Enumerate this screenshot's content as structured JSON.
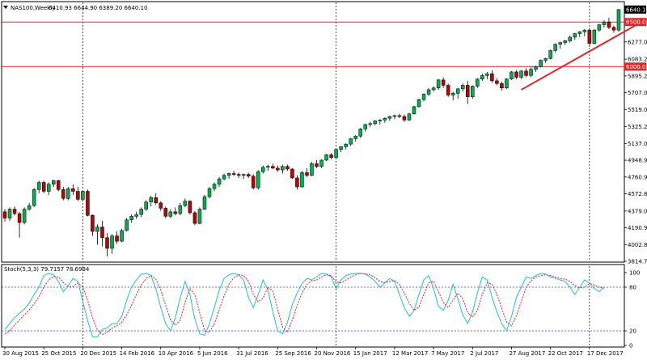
{
  "header": {
    "symbol": "NAS100,Weekly",
    "ohlc": "6410.93 6644.90 6389.20 6640.10",
    "indicator_label": "Stoch(5,3,3) 79.7157 78.6984"
  },
  "colors": {
    "bull": "#00b050",
    "bear": "#c00000",
    "hline": "#e0262a",
    "trendline": "#e0262a",
    "stoch_main": "#26bcd1",
    "stoch_signal": "#e02020",
    "level_line": "#3c3cff",
    "grid_text": "#000000"
  },
  "chart_data": [
    {
      "type": "candlestick",
      "title": "",
      "ylim": [
        3814.7,
        6720
      ],
      "y_ticks": [
        "6640.10",
        "6500.00",
        "6277.05",
        "6083.25",
        "5895.20",
        "5707.00",
        "5519.00",
        "5325.25",
        "5137.05",
        "4948.90",
        "4760.90",
        "4572.80",
        "4379.00",
        "4190.90",
        "4002.80",
        "3814.70"
      ],
      "price_labels": [
        {
          "value": 6640.1,
          "text": "6640.10",
          "style": "dark"
        },
        {
          "value": 6500.0,
          "text": "6500.00",
          "style": "red"
        },
        {
          "value": 6000.0,
          "text": "6000.00",
          "style": "red"
        }
      ],
      "horizontal_lines": [
        6500,
        6000
      ],
      "trendline": {
        "from": [
          106,
          5740
        ],
        "to": [
          132,
          6640
        ]
      },
      "x_labels": [
        {
          "i": 0,
          "text": "30 Aug 2015"
        },
        {
          "i": 8,
          "text": "25 Oct 2015"
        },
        {
          "i": 16,
          "text": "20 Dec 2015"
        },
        {
          "i": 24,
          "text": "14 Feb 2016"
        },
        {
          "i": 32,
          "text": "10 Apr 2016"
        },
        {
          "i": 40,
          "text": "5 Jun 2016"
        },
        {
          "i": 48,
          "text": "31 Jul 2016"
        },
        {
          "i": 56,
          "text": "25 Sep 2016"
        },
        {
          "i": 64,
          "text": "20 Nov 2016"
        },
        {
          "i": 72,
          "text": "15 Jan 2017"
        },
        {
          "i": 80,
          "text": "12 Mar 2017"
        },
        {
          "i": 88,
          "text": "7 May 2017"
        },
        {
          "i": 96,
          "text": "2 Jul 2017"
        },
        {
          "i": 104,
          "text": "27 Aug 2017"
        },
        {
          "i": 112,
          "text": "22 Oct 2017"
        },
        {
          "i": 120,
          "text": "17 Dec 2017"
        }
      ],
      "vertical_markers": [
        16,
        68,
        120
      ],
      "candles": [
        [
          4370,
          4400,
          4260,
          4300
        ],
        [
          4300,
          4420,
          4270,
          4400
        ],
        [
          4400,
          4430,
          4330,
          4350
        ],
        [
          4350,
          4370,
          4080,
          4250
        ],
        [
          4250,
          4420,
          4230,
          4400
        ],
        [
          4400,
          4470,
          4380,
          4440
        ],
        [
          4440,
          4640,
          4420,
          4620
        ],
        [
          4620,
          4720,
          4580,
          4700
        ],
        [
          4700,
          4720,
          4580,
          4600
        ],
        [
          4600,
          4700,
          4560,
          4680
        ],
        [
          4680,
          4730,
          4650,
          4720
        ],
        [
          4720,
          4730,
          4600,
          4620
        ],
        [
          4620,
          4650,
          4500,
          4520
        ],
        [
          4520,
          4650,
          4500,
          4630
        ],
        [
          4630,
          4680,
          4560,
          4600
        ],
        [
          4600,
          4650,
          4490,
          4510
        ],
        [
          4510,
          4610,
          4490,
          4600
        ],
        [
          4600,
          4620,
          4320,
          4330
        ],
        [
          4330,
          4340,
          4100,
          4150
        ],
        [
          4150,
          4230,
          4000,
          4200
        ],
        [
          4200,
          4270,
          3980,
          4080
        ],
        [
          4080,
          4130,
          3870,
          3960
        ],
        [
          3960,
          4120,
          3900,
          4100
        ],
        [
          4100,
          4150,
          4010,
          4040
        ],
        [
          4040,
          4180,
          4030,
          4160
        ],
        [
          4160,
          4300,
          4150,
          4280
        ],
        [
          4280,
          4340,
          4250,
          4320
        ],
        [
          4320,
          4370,
          4290,
          4340
        ],
        [
          4340,
          4420,
          4310,
          4400
        ],
        [
          4400,
          4500,
          4380,
          4480
        ],
        [
          4480,
          4550,
          4430,
          4530
        ],
        [
          4530,
          4580,
          4450,
          4470
        ],
        [
          4470,
          4490,
          4380,
          4410
        ],
        [
          4410,
          4430,
          4300,
          4320
        ],
        [
          4320,
          4400,
          4300,
          4370
        ],
        [
          4370,
          4420,
          4330,
          4350
        ],
        [
          4350,
          4470,
          4330,
          4440
        ],
        [
          4440,
          4520,
          4420,
          4490
        ],
        [
          4490,
          4500,
          4340,
          4360
        ],
        [
          4360,
          4380,
          4220,
          4240
        ],
        [
          4240,
          4420,
          4230,
          4400
        ],
        [
          4400,
          4560,
          4390,
          4540
        ],
        [
          4540,
          4650,
          4520,
          4630
        ],
        [
          4630,
          4700,
          4600,
          4680
        ],
        [
          4680,
          4760,
          4650,
          4740
        ],
        [
          4740,
          4800,
          4720,
          4780
        ],
        [
          4780,
          4810,
          4740,
          4800
        ],
        [
          4800,
          4830,
          4770,
          4790
        ],
        [
          4790,
          4810,
          4750,
          4780
        ],
        [
          4780,
          4800,
          4740,
          4790
        ],
        [
          4790,
          4810,
          4750,
          4770
        ],
        [
          4770,
          4790,
          4620,
          4640
        ],
        [
          4640,
          4840,
          4620,
          4820
        ],
        [
          4820,
          4890,
          4800,
          4870
        ],
        [
          4870,
          4900,
          4830,
          4880
        ],
        [
          4880,
          4910,
          4850,
          4860
        ],
        [
          4860,
          4890,
          4820,
          4840
        ],
        [
          4840,
          4900,
          4800,
          4880
        ],
        [
          4880,
          4900,
          4830,
          4850
        ],
        [
          4850,
          4860,
          4740,
          4750
        ],
        [
          4750,
          4780,
          4620,
          4650
        ],
        [
          4650,
          4830,
          4640,
          4810
        ],
        [
          4810,
          4860,
          4760,
          4780
        ],
        [
          4780,
          4930,
          4770,
          4910
        ],
        [
          4910,
          4950,
          4860,
          4880
        ],
        [
          4880,
          4960,
          4860,
          4950
        ],
        [
          4950,
          5020,
          4940,
          5010
        ],
        [
          5010,
          5030,
          4960,
          4980
        ],
        [
          4980,
          5080,
          4970,
          5070
        ],
        [
          5070,
          5110,
          5040,
          5100
        ],
        [
          5100,
          5140,
          5070,
          5130
        ],
        [
          5130,
          5200,
          5110,
          5190
        ],
        [
          5190,
          5230,
          5160,
          5220
        ],
        [
          5220,
          5310,
          5200,
          5300
        ],
        [
          5300,
          5360,
          5270,
          5350
        ],
        [
          5350,
          5380,
          5320,
          5360
        ],
        [
          5360,
          5400,
          5340,
          5390
        ],
        [
          5390,
          5410,
          5350,
          5400
        ],
        [
          5400,
          5430,
          5370,
          5420
        ],
        [
          5420,
          5450,
          5390,
          5440
        ],
        [
          5440,
          5460,
          5410,
          5450
        ],
        [
          5450,
          5470,
          5420,
          5440
        ],
        [
          5440,
          5460,
          5380,
          5400
        ],
        [
          5400,
          5480,
          5390,
          5470
        ],
        [
          5470,
          5560,
          5460,
          5550
        ],
        [
          5550,
          5640,
          5540,
          5630
        ],
        [
          5630,
          5700,
          5610,
          5690
        ],
        [
          5690,
          5760,
          5670,
          5740
        ],
        [
          5740,
          5780,
          5720,
          5760
        ],
        [
          5760,
          5860,
          5740,
          5850
        ],
        [
          5850,
          5880,
          5760,
          5790
        ],
        [
          5790,
          5810,
          5660,
          5680
        ],
        [
          5680,
          5720,
          5620,
          5700
        ],
        [
          5700,
          5760,
          5640,
          5750
        ],
        [
          5750,
          5810,
          5720,
          5790
        ],
        [
          5790,
          5840,
          5580,
          5660
        ],
        [
          5660,
          5790,
          5640,
          5780
        ],
        [
          5780,
          5870,
          5760,
          5860
        ],
        [
          5860,
          5920,
          5840,
          5900
        ],
        [
          5900,
          5940,
          5860,
          5920
        ],
        [
          5920,
          5960,
          5820,
          5840
        ],
        [
          5840,
          5870,
          5790,
          5810
        ],
        [
          5810,
          5830,
          5730,
          5760
        ],
        [
          5760,
          5870,
          5750,
          5860
        ],
        [
          5860,
          5950,
          5850,
          5940
        ],
        [
          5940,
          5960,
          5860,
          5880
        ],
        [
          5880,
          5960,
          5860,
          5950
        ],
        [
          5950,
          5980,
          5880,
          5900
        ],
        [
          5900,
          5990,
          5880,
          5970
        ],
        [
          5970,
          6010,
          5940,
          6000
        ],
        [
          6000,
          6080,
          5990,
          6070
        ],
        [
          6070,
          6100,
          6040,
          6090
        ],
        [
          6090,
          6190,
          6080,
          6180
        ],
        [
          6180,
          6260,
          6160,
          6250
        ],
        [
          6250,
          6280,
          6200,
          6270
        ],
        [
          6270,
          6300,
          6240,
          6290
        ],
        [
          6290,
          6350,
          6270,
          6330
        ],
        [
          6330,
          6380,
          6300,
          6370
        ],
        [
          6370,
          6400,
          6330,
          6390
        ],
        [
          6390,
          6420,
          6340,
          6410
        ],
        [
          6410,
          6430,
          6220,
          6260
        ],
        [
          6260,
          6420,
          6250,
          6410
        ],
        [
          6410,
          6480,
          6390,
          6470
        ],
        [
          6470,
          6520,
          6440,
          6500
        ],
        [
          6500,
          6550,
          6420,
          6440
        ],
        [
          6440,
          6460,
          6380,
          6410
        ],
        [
          6410,
          6645,
          6390,
          6640
        ]
      ]
    },
    {
      "type": "line",
      "title": "",
      "ylim": [
        0,
        100
      ],
      "y_ticks": [
        100,
        80,
        20,
        0
      ],
      "levels": [
        80,
        20
      ],
      "series": [
        {
          "key": "main",
          "values": [
            22,
            30,
            38,
            44,
            50,
            58,
            70,
            80,
            96,
            99,
            97,
            88,
            74,
            82,
            92,
            88,
            60,
            34,
            12,
            12,
            22,
            24,
            30,
            30,
            40,
            62,
            80,
            90,
            98,
            99,
            96,
            78,
            52,
            30,
            20,
            38,
            66,
            88,
            70,
            36,
            16,
            14,
            30,
            52,
            76,
            92,
            97,
            99,
            97,
            90,
            66,
            52,
            70,
            90,
            76,
            46,
            20,
            16,
            32,
            56,
            72,
            85,
            92,
            90,
            94,
            99,
            98,
            94,
            78,
            90,
            96,
            98,
            99,
            99,
            98,
            94,
            88,
            80,
            86,
            92,
            88,
            70,
            52,
            40,
            48,
            70,
            90,
            96,
            78,
            54,
            48,
            62,
            84,
            64,
            42,
            30,
            46,
            72,
            94,
            90,
            66,
            46,
            30,
            20,
            40,
            66,
            80,
            94,
            92,
            96,
            99,
            98,
            94,
            92,
            90,
            88,
            80,
            70,
            80,
            90,
            86,
            78,
            74,
            79.72
          ]
        },
        {
          "key": "signal",
          "values": [
            16,
            20,
            28,
            35,
            42,
            49,
            57,
            67,
            80,
            90,
            95,
            94,
            86,
            81,
            81,
            86,
            80,
            62,
            38,
            21,
            15,
            18,
            24,
            27,
            32,
            42,
            55,
            70,
            83,
            92,
            96,
            91,
            76,
            55,
            35,
            28,
            35,
            60,
            78,
            70,
            45,
            20,
            18,
            30,
            49,
            68,
            84,
            93,
            97,
            96,
            88,
            70,
            60,
            65,
            80,
            75,
            50,
            25,
            18,
            35,
            55,
            72,
            84,
            89,
            90,
            94,
            97,
            96,
            87,
            86,
            90,
            94,
            97,
            99,
            98,
            97,
            93,
            88,
            86,
            88,
            89,
            84,
            72,
            58,
            48,
            53,
            70,
            86,
            88,
            74,
            59,
            52,
            62,
            72,
            64,
            45,
            39,
            48,
            70,
            86,
            84,
            70,
            51,
            32,
            27,
            41,
            60,
            80,
            89,
            94,
            96,
            97,
            96,
            94,
            92,
            91,
            88,
            82,
            79,
            80,
            85,
            83,
            80,
            78.7
          ]
        }
      ]
    }
  ]
}
